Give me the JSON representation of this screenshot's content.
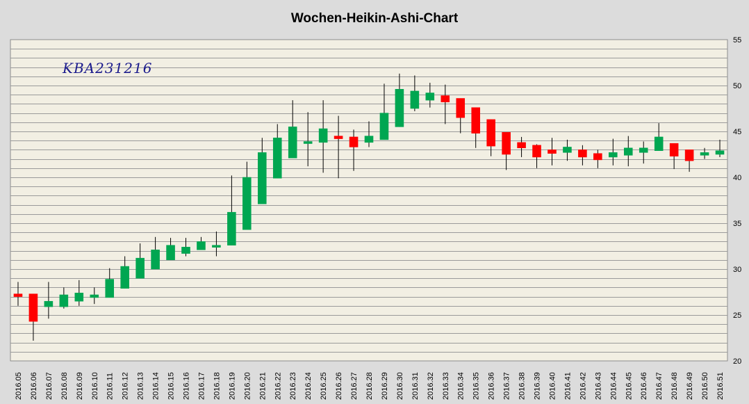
{
  "chart_data": {
    "type": "candlestick",
    "title": "Wochen-Heikin-Ashi-Chart",
    "annotation": "KBA231216",
    "xlabel": "",
    "ylabel": "",
    "ylim": [
      20,
      55
    ],
    "yticks": [
      20,
      25,
      30,
      35,
      40,
      45,
      50,
      55
    ],
    "grid": true,
    "colors": {
      "up": "#00a651",
      "down": "#ff0000",
      "plot_bg": "#f2efe3",
      "frame_bg": "#dcdcdc",
      "grid": "#9a9a9a"
    },
    "categories": [
      "2016.05",
      "2016.06",
      "2016.07",
      "2016.08",
      "2016.09",
      "2016.10",
      "2016.11",
      "2016.12",
      "2016.13",
      "2016.14",
      "2016.15",
      "2016.16",
      "2016.17",
      "2016.18",
      "2016.19",
      "2016.20",
      "2016.21",
      "2016.22",
      "2016.23",
      "2016.24",
      "2016.25",
      "2016.26",
      "2016.27",
      "2016.28",
      "2016.29",
      "2016.30",
      "2016.31",
      "2016.32",
      "2016.33",
      "2016.34",
      "2016.35",
      "2016.36",
      "2016.37",
      "2016.38",
      "2016.39",
      "2016.40",
      "2016.41",
      "2016.42",
      "2016.43",
      "2016.44",
      "2016.45",
      "2016.46",
      "2016.47",
      "2016.48",
      "2016.49",
      "2016.50",
      "2016.51"
    ],
    "open": [
      27.3,
      27.3,
      25.9,
      25.9,
      26.5,
      26.9,
      26.9,
      27.9,
      29.0,
      30.0,
      31.0,
      31.7,
      32.1,
      32.4,
      32.6,
      34.3,
      37.1,
      39.9,
      42.1,
      43.7,
      43.8,
      44.5,
      44.4,
      43.8,
      44.1,
      45.5,
      47.5,
      48.4,
      48.9,
      48.6,
      47.6,
      46.3,
      44.9,
      43.8,
      43.5,
      43.0,
      42.7,
      43.0,
      42.6,
      42.2,
      42.4,
      42.7,
      42.9,
      43.7,
      43.0,
      42.4,
      42.5
    ],
    "close": [
      27.0,
      24.3,
      26.5,
      27.2,
      27.4,
      27.2,
      28.9,
      30.3,
      31.2,
      32.1,
      32.6,
      32.4,
      33.0,
      32.6,
      36.2,
      40.0,
      42.7,
      44.3,
      45.5,
      43.9,
      45.3,
      44.2,
      43.3,
      44.5,
      47.0,
      49.6,
      49.4,
      49.2,
      48.2,
      46.5,
      44.8,
      43.4,
      42.5,
      43.2,
      42.2,
      42.6,
      43.3,
      42.2,
      41.9,
      42.7,
      43.2,
      43.2,
      44.4,
      42.3,
      41.8,
      42.7,
      42.9
    ],
    "high": [
      28.6,
      27.3,
      28.6,
      28.0,
      28.8,
      28.0,
      30.1,
      31.4,
      32.8,
      33.5,
      33.4,
      33.4,
      33.5,
      34.1,
      40.2,
      41.7,
      44.3,
      45.8,
      48.4,
      47.1,
      48.4,
      46.7,
      45.2,
      46.1,
      50.2,
      51.3,
      51.1,
      50.3,
      50.1,
      48.6,
      47.6,
      46.3,
      44.9,
      44.4,
      43.6,
      44.3,
      44.1,
      43.5,
      43.0,
      44.2,
      44.5,
      43.9,
      45.9,
      43.7,
      43.0,
      43.2,
      44.1
    ],
    "low": [
      26.0,
      22.2,
      24.6,
      25.7,
      26.0,
      26.2,
      26.9,
      27.9,
      29.0,
      30.0,
      31.0,
      31.4,
      32.1,
      31.4,
      32.6,
      34.3,
      37.1,
      39.9,
      42.1,
      41.2,
      40.5,
      39.9,
      40.7,
      43.3,
      44.1,
      45.5,
      47.2,
      47.6,
      45.8,
      44.8,
      43.2,
      42.3,
      40.8,
      42.2,
      41.0,
      41.3,
      41.8,
      41.3,
      41.0,
      41.3,
      41.2,
      41.5,
      42.9,
      40.9,
      40.6,
      42.0,
      42.2
    ]
  }
}
